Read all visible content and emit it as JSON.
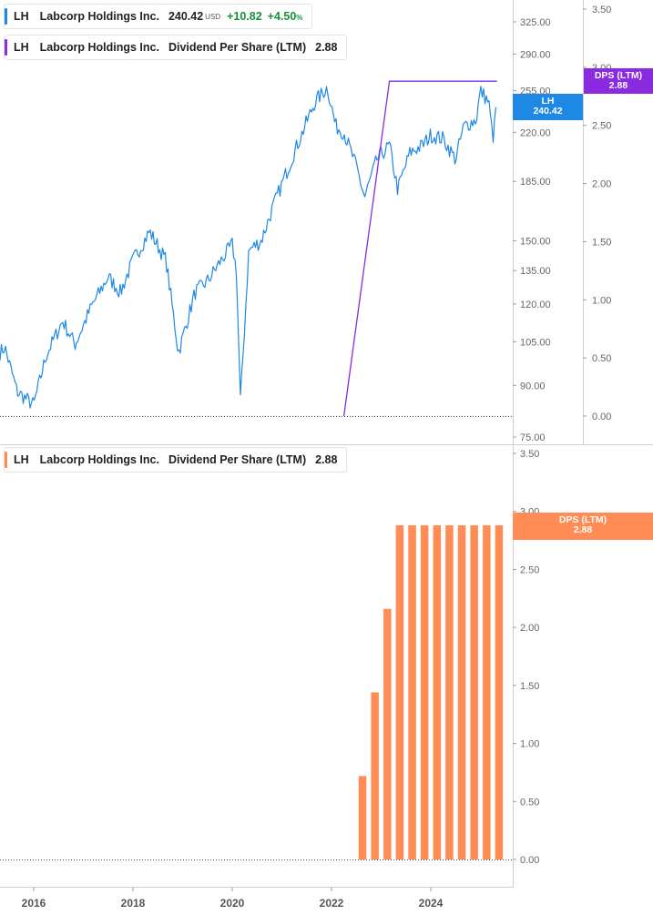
{
  "colors": {
    "price": "#1e88e5",
    "dps_line": "#8a2be2",
    "dps_bar": "#ff8c55",
    "change": "#1a8f3c"
  },
  "legend_price": {
    "ticker": "LH",
    "name": "Labcorp Holdings Inc.",
    "price": "240.42",
    "unit": "USD",
    "change": "+10.82",
    "change_pct": "+4.50",
    "pct_sign": "%"
  },
  "legend_dps_top": {
    "ticker": "LH",
    "name": "Labcorp Holdings Inc.",
    "metric": "Dividend Per Share (LTM)",
    "value": "2.88"
  },
  "legend_dps_bottom": {
    "ticker": "LH",
    "name": "Labcorp Holdings Inc.",
    "metric": "Dividend Per Share (LTM)",
    "value": "2.88"
  },
  "tags": {
    "price": {
      "label": "LH",
      "value": "240.42"
    },
    "dps_top": {
      "label": "DPS (LTM)",
      "value": "2.88"
    },
    "dps_bottom": {
      "label": "DPS (LTM)",
      "value": "2.88"
    }
  },
  "chart_data": [
    {
      "type": "line",
      "title": "",
      "scale": "log",
      "series": [
        {
          "name": "LH",
          "points": [
            [
              "2015-03",
              98
            ],
            [
              "2015-06",
              103
            ],
            [
              "2015-09",
              88
            ],
            [
              "2016-01",
              84
            ],
            [
              "2016-04",
              100
            ],
            [
              "2016-08",
              113
            ],
            [
              "2016-11",
              104
            ],
            [
              "2017-03",
              119
            ],
            [
              "2017-07",
              132
            ],
            [
              "2017-10",
              125
            ],
            [
              "2018-01",
              140
            ],
            [
              "2018-05",
              155
            ],
            [
              "2018-09",
              140
            ],
            [
              "2018-12",
              101
            ],
            [
              "2019-04",
              125
            ],
            [
              "2019-07",
              130
            ],
            [
              "2019-10",
              139
            ],
            [
              "2020-01",
              148
            ],
            [
              "2020-02",
              135
            ],
            [
              "2020-03",
              85
            ],
            [
              "2020-05",
              145
            ],
            [
              "2020-08",
              150
            ],
            [
              "2020-11",
              170
            ],
            [
              "2021-04",
              205
            ],
            [
              "2021-09",
              245
            ],
            [
              "2021-12",
              258
            ],
            [
              "2022-02",
              225
            ],
            [
              "2022-04",
              220
            ],
            [
              "2022-07",
              195
            ],
            [
              "2022-09",
              175
            ],
            [
              "2022-12",
              200
            ],
            [
              "2023-03",
              210
            ],
            [
              "2023-05",
              180
            ],
            [
              "2023-08",
              205
            ],
            [
              "2023-11",
              210
            ],
            [
              "2024-01",
              218
            ],
            [
              "2024-04",
              215
            ],
            [
              "2024-07",
              200
            ],
            [
              "2024-09",
              225
            ],
            [
              "2024-12",
              230
            ],
            [
              "2025-01",
              255
            ],
            [
              "2025-03",
              245
            ],
            [
              "2025-04",
              215
            ],
            [
              "2025-05",
              240.42
            ]
          ]
        }
      ],
      "y_ticks": [
        "325.00",
        "290.00",
        "255.00",
        "220.00",
        "185.00",
        "150.00",
        "135.00",
        "120.00",
        "105.00",
        "90.00",
        "75.00"
      ],
      "y_range": [
        75,
        325
      ]
    },
    {
      "type": "line",
      "title": "",
      "series": [
        {
          "name": "Dividend Per Share (LTM)",
          "points": [
            [
              "2022-04",
              0
            ],
            [
              "2023-03",
              2.88
            ],
            [
              "2025-05",
              2.88
            ]
          ]
        }
      ],
      "y_ticks": [
        "3.50",
        "3.00",
        "2.50",
        "2.00",
        "1.50",
        "1.00",
        "0.50",
        "0.00"
      ],
      "y_range": [
        0,
        3.5
      ]
    },
    {
      "type": "bar",
      "title": "",
      "series": [
        {
          "name": "Dividend Per Share (LTM)",
          "points": [
            [
              "2022Q3",
              0.72
            ],
            [
              "2022Q4",
              1.44
            ],
            [
              "2023Q1",
              2.16
            ],
            [
              "2023Q2",
              2.88
            ],
            [
              "2023Q3",
              2.88
            ],
            [
              "2023Q4",
              2.88
            ],
            [
              "2024Q1",
              2.88
            ],
            [
              "2024Q2",
              2.88
            ],
            [
              "2024Q3",
              2.88
            ],
            [
              "2024Q4",
              2.88
            ],
            [
              "2025Q1",
              2.88
            ],
            [
              "2025Q2",
              2.88
            ]
          ]
        }
      ],
      "y_ticks": [
        "3.50",
        "3.00",
        "2.50",
        "2.00",
        "1.50",
        "1.00",
        "0.50",
        "0.00"
      ],
      "y_range": [
        0,
        3.5
      ],
      "x_ticks": [
        "2016",
        "2018",
        "2020",
        "2022",
        "2024"
      ]
    }
  ]
}
